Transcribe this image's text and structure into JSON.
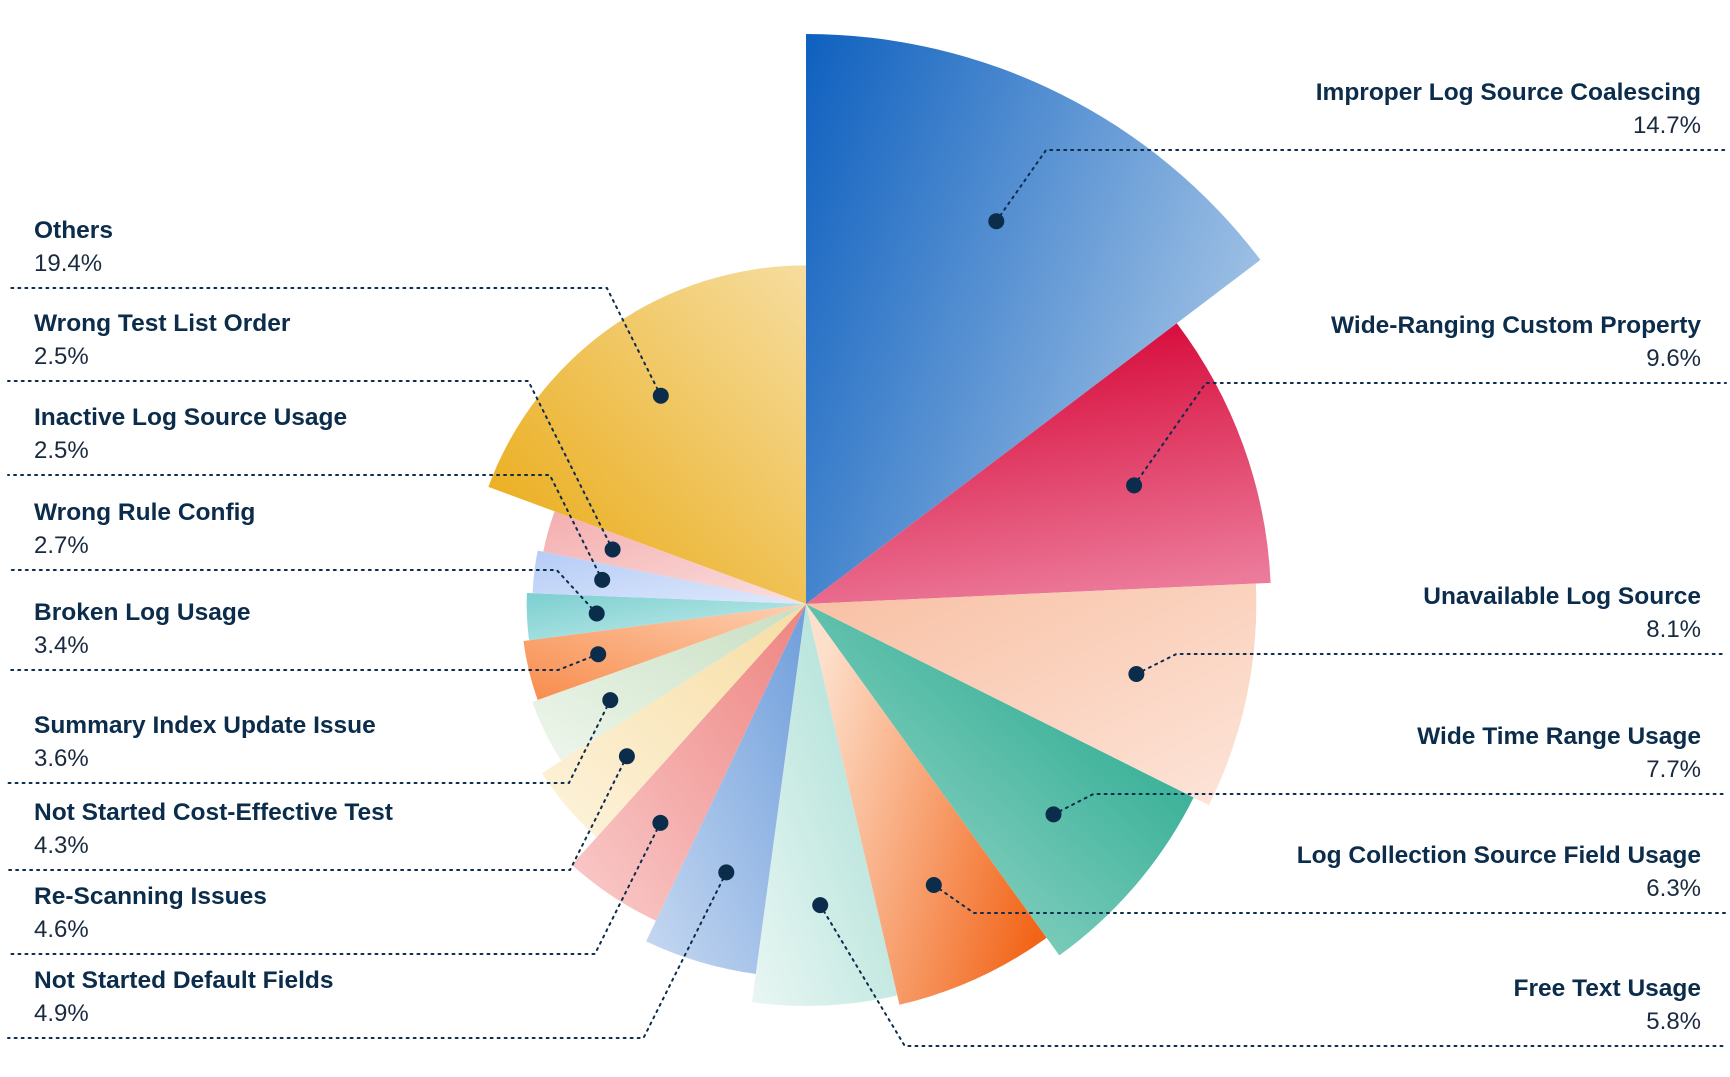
{
  "chart_data": {
    "type": "pie",
    "variant": "polar-area",
    "title": "",
    "start_angle_deg": 0,
    "direction": "clockwise",
    "legend": "none",
    "slices": [
      {
        "name": "Improper Log Source Coalescing",
        "value": 14.7,
        "label": "14.7%",
        "relative_radius": 1.0,
        "colors": [
          "#0e60bf",
          "#9fc1e5"
        ],
        "grad": [
          0,
          0,
          1,
          0.45
        ],
        "label_side": "right"
      },
      {
        "name": "Wide-Ranging Custom Property",
        "value": 9.6,
        "label": "9.6%",
        "relative_radius": 0.816,
        "colors": [
          "#d50031",
          "#ec7a9a"
        ],
        "grad": [
          0.3,
          0,
          0.55,
          1
        ],
        "label_side": "right"
      },
      {
        "name": "Unavailable Log Source",
        "value": 8.1,
        "label": "8.1%",
        "relative_radius": 0.79,
        "colors": [
          "#f8bfa2",
          "#fde5da"
        ],
        "grad": [
          0,
          0,
          1,
          1
        ],
        "label_side": "right"
      },
      {
        "name": "Wide Time Range Usage",
        "value": 7.7,
        "label": "7.7%",
        "relative_radius": 0.76,
        "colors": [
          "#13a184",
          "#a9ded2"
        ],
        "grad": [
          1,
          0,
          0,
          1
        ],
        "label_side": "right"
      },
      {
        "name": "Log Collection  Source Field Usage",
        "value": 6.3,
        "label": "6.3%",
        "relative_radius": 0.722,
        "colors": [
          "#f26519",
          "#fde0cc"
        ],
        "grad": [
          1,
          0.7,
          0,
          0.3
        ],
        "label_side": "right"
      },
      {
        "name": "Free Text  Usage",
        "value": 5.8,
        "label": "5.8%",
        "relative_radius": 0.705,
        "colors": [
          "#a3ddd2",
          "#e9f6f3"
        ],
        "grad": [
          1,
          0,
          0,
          1
        ],
        "label_side": "right"
      },
      {
        "name": "Not Started Default Fields",
        "value": 4.9,
        "label": "4.9%",
        "relative_radius": 0.655,
        "colors": [
          "#6f9edc",
          "#c7d9f1"
        ],
        "grad": [
          1,
          0,
          0,
          1
        ],
        "label_side": "left"
      },
      {
        "name": "Re-Scanning Issues",
        "value": 4.6,
        "label": "4.6%",
        "relative_radius": 0.615,
        "colors": [
          "#ee8481",
          "#f9cccb"
        ],
        "grad": [
          1,
          0,
          0,
          1
        ],
        "label_side": "left"
      },
      {
        "name": "Not Started Cost-Effective Test",
        "value": 4.3,
        "label": "4.3%",
        "relative_radius": 0.55,
        "colors": [
          "#f7dda3",
          "#fdf3dc"
        ],
        "grad": [
          1,
          0,
          0,
          1
        ],
        "label_side": "left"
      },
      {
        "name": "Summary Index Update Issue",
        "value": 3.6,
        "label": "3.6%",
        "relative_radius": 0.51,
        "colors": [
          "#c8dfc1",
          "#eef6ec"
        ],
        "grad": [
          1,
          0,
          0,
          1
        ],
        "label_side": "left"
      },
      {
        "name": "Broken Log Usage",
        "value": 3.4,
        "label": "3.4%",
        "relative_radius": 0.5,
        "colors": [
          "#f88c4c",
          "#fdd0b3"
        ],
        "grad": [
          0,
          1,
          1,
          0
        ],
        "label_side": "left"
      },
      {
        "name": "Wrong Rule Config",
        "value": 2.7,
        "label": "2.7%",
        "relative_radius": 0.49,
        "colors": [
          "#7ccfd0",
          "#c5ecec"
        ],
        "grad": [
          0,
          0,
          1,
          1
        ],
        "label_side": "left"
      },
      {
        "name": "Inactive Log Source Usage",
        "value": 2.5,
        "label": "2.5%",
        "relative_radius": 0.48,
        "colors": [
          "#b5ccf6",
          "#dee8fb"
        ],
        "grad": [
          0,
          0,
          1,
          1
        ],
        "label_side": "left"
      },
      {
        "name": "Wrong Test  List Order",
        "value": 2.5,
        "label": "2.5%",
        "relative_radius": 0.47,
        "colors": [
          "#f4aeae",
          "#fbdede"
        ],
        "grad": [
          0,
          0,
          1,
          1
        ],
        "label_side": "left"
      },
      {
        "name": "Others",
        "value": 19.4,
        "label": "19.4%",
        "relative_radius": 0.594,
        "colors": [
          "#e9a70c",
          "#f6dd9f"
        ],
        "grad": [
          0,
          1,
          1,
          0
        ],
        "label_side": "left"
      }
    ]
  },
  "colors": {
    "label_text": "#0c2c4c",
    "leader_line": "#0c2c4c",
    "dot": "#0c2c4c"
  }
}
